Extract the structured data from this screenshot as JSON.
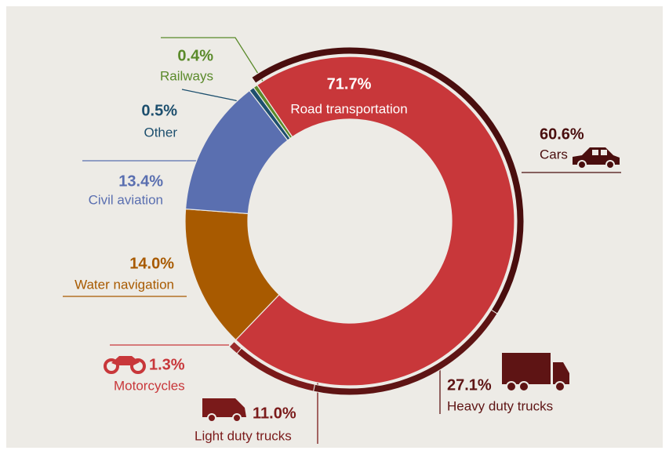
{
  "chart_data": {
    "type": "donut",
    "rings": [
      {
        "categories": [
          "Road transportation",
          "Water navigation",
          "Civil aviation",
          "Other",
          "Railways"
        ],
        "values": [
          71.7,
          14.0,
          13.4,
          0.5,
          0.4
        ],
        "value_labels": [
          "71.7%",
          "14.0%",
          "13.4%",
          "0.5%",
          "0.4%"
        ],
        "colors": [
          "#c8373a",
          "#a85a00",
          "#5a6fb0",
          "#1d4f6e",
          "#5a8a2a"
        ]
      },
      {
        "categories": [
          "Cars",
          "Heavy duty trucks",
          "Light duty trucks",
          "Motorcycles"
        ],
        "values": [
          60.6,
          27.1,
          11.0,
          1.3
        ],
        "value_labels": [
          "60.6%",
          "27.1%",
          "11.0%",
          "1.3%"
        ],
        "colors": [
          "#4a0e0e",
          "#5e1414",
          "#7a1a1a",
          "#9a2a2a"
        ]
      }
    ]
  }
}
